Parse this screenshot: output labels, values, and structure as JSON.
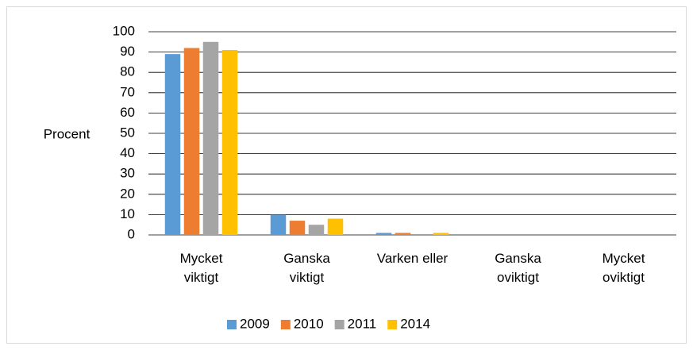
{
  "chart_data": {
    "type": "bar",
    "y_label": "Procent",
    "categories": [
      "Mycket\nviktigt",
      "Ganska\nviktigt",
      "Varken eller",
      "Ganska\noviktigt",
      "Mycket\noviktigt"
    ],
    "series": [
      {
        "name": "2009",
        "color": "#5b9bd5",
        "values": [
          89,
          10,
          1,
          0,
          0
        ]
      },
      {
        "name": "2010",
        "color": "#ed7d31",
        "values": [
          92,
          7,
          1,
          0,
          0
        ]
      },
      {
        "name": "2011",
        "color": "#a5a5a5",
        "values": [
          95,
          5,
          0,
          0,
          0
        ]
      },
      {
        "name": "2014",
        "color": "#ffc000",
        "values": [
          91,
          8,
          1,
          0,
          0
        ]
      }
    ],
    "ylim": [
      0,
      100
    ],
    "yticks": [
      0,
      10,
      20,
      30,
      40,
      50,
      60,
      70,
      80,
      90,
      100
    ],
    "grid": true,
    "legend": "bottom"
  }
}
